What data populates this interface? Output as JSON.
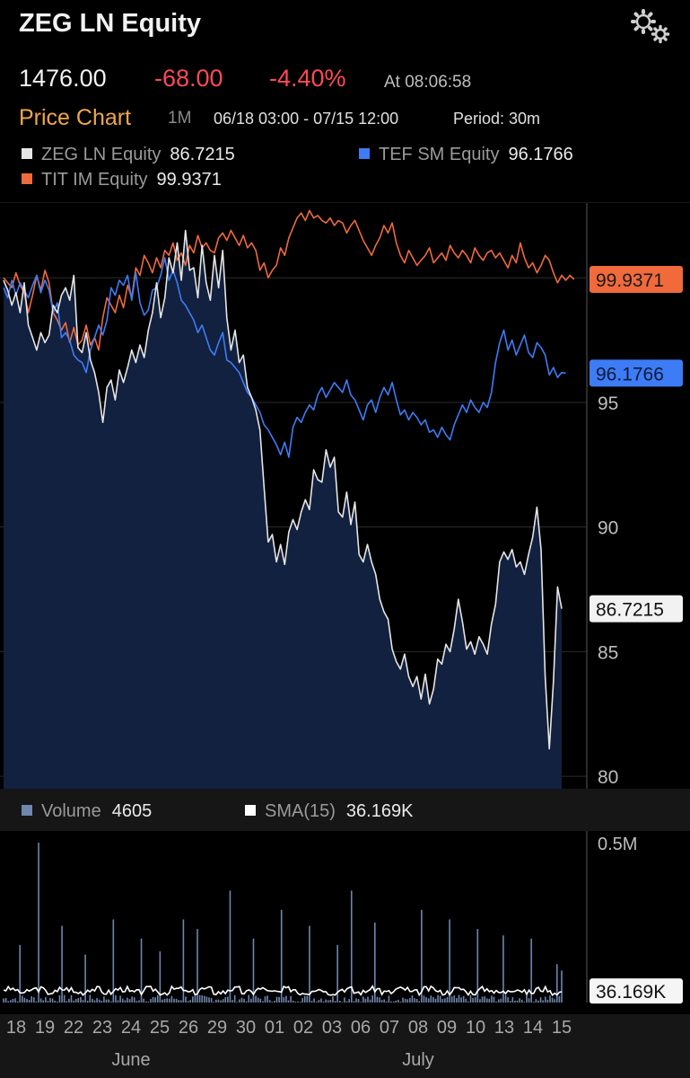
{
  "header": {
    "title": "ZEG LN Equity",
    "settings_icon": "gear-icon",
    "last_price": "1476.00",
    "change": "-68.00",
    "change_pct": "-4.40%",
    "time": "At 08:06:58"
  },
  "chart_header": {
    "title": "Price Chart",
    "range": "1M",
    "dates": "06/18 03:00 - 07/15 12:00",
    "period": "Period: 30m"
  },
  "legend": {
    "zeg": {
      "name": "ZEG LN Equity",
      "value": "86.7215"
    },
    "tef": {
      "name": "TEF SM Equity",
      "value": "96.1766"
    },
    "tit": {
      "name": "TIT IM Equity",
      "value": "99.9371"
    }
  },
  "volume_legend": {
    "volume": {
      "name": "Volume",
      "value": "4605"
    },
    "sma": {
      "name": "SMA(15)",
      "value": "36.169K"
    }
  },
  "colors": {
    "zeg": "#e6e6e6",
    "tef": "#3d7cf5",
    "tit": "#f06a3c",
    "area_fill": "#12213f",
    "volume": "#6f86ad",
    "gain": "#ff4a55",
    "accent": "#f0a64a"
  },
  "chart_data": {
    "type": "line",
    "y_axis_ticks": [
      "95",
      "90",
      "85",
      "80"
    ],
    "y_axis_tick_values": [
      95,
      90,
      85,
      80
    ],
    "ylim": [
      79.5,
      103
    ],
    "x_tick_labels": [
      "18",
      "19",
      "22",
      "23",
      "24",
      "25",
      "26",
      "29",
      "30",
      "01",
      "02",
      "03",
      "06",
      "07",
      "08",
      "09",
      "10",
      "13",
      "14",
      "15"
    ],
    "month_labels": [
      {
        "label": "June",
        "index": 4
      },
      {
        "label": "July",
        "index": 14
      }
    ],
    "last_value_labels": {
      "tit": "99.9371",
      "tef": "96.1766",
      "zeg": "86.7215"
    },
    "series": [
      {
        "name": "ZEG LN Equity",
        "key": "zeg",
        "area": true,
        "values": [
          99.9,
          99.5,
          98.9,
          99.4,
          98.6,
          99.8,
          98.1,
          97.6,
          97.1,
          97.8,
          97.4,
          97.7,
          98.9,
          98.6,
          99.3,
          99.6,
          99.1,
          100.1,
          97.2,
          97.0,
          97.8,
          96.7,
          96.2,
          95.4,
          94.2,
          95.6,
          95.9,
          95.1,
          96.3,
          95.8,
          96.4,
          97.1,
          96.6,
          97.3,
          96.8,
          97.9,
          98.6,
          99.8,
          98.4,
          99.2,
          100.8,
          100.2,
          101.4,
          99.9,
          101.9,
          100.3,
          100.4,
          99.2,
          101.3,
          99.8,
          99.1,
          100.9,
          99.6,
          101.1,
          98.4,
          97.1,
          97.9,
          96.6,
          96.9,
          95.6,
          95.2,
          94.7,
          93.9,
          91.6,
          89.4,
          89.7,
          88.6,
          89.3,
          88.5,
          89.8,
          90.3,
          89.9,
          90.6,
          91.1,
          90.7,
          92.3,
          91.9,
          91.8,
          93.1,
          92.4,
          92.8,
          90.6,
          90.4,
          91.4,
          90.1,
          91.0,
          88.9,
          88.6,
          89.3,
          88.6,
          88.1,
          87.1,
          86.6,
          86.3,
          85.1,
          84.6,
          84.3,
          84.9,
          84.0,
          83.6,
          84.0,
          83.1,
          84.1,
          82.9,
          83.5,
          84.7,
          84.5,
          85.3,
          85.0,
          85.9,
          87.1,
          86.2,
          85.1,
          85.4,
          84.9,
          85.6,
          85.3,
          84.9,
          86.1,
          86.9,
          88.6,
          89.0,
          88.7,
          89.1,
          88.4,
          88.6,
          88.1,
          88.9,
          89.6,
          90.8,
          89.1,
          84.0,
          81.1,
          83.8,
          87.6,
          86.7215
        ]
      },
      {
        "name": "TEF SM Equity",
        "key": "tef",
        "values": [
          99.6,
          99.2,
          99.9,
          99.3,
          99.8,
          99.5,
          99.2,
          99.7,
          100.1,
          99.4,
          99.9,
          99.5,
          98.6,
          99.0,
          97.6,
          97.8,
          97.5,
          96.9,
          96.7,
          96.6,
          96.2,
          97.1,
          97.6,
          98.1,
          97.7,
          98.3,
          99.6,
          99.3,
          99.9,
          99.7,
          100.1,
          99.1,
          100.2,
          99.0,
          98.5,
          98.7,
          99.5,
          99.6,
          100.1,
          100.8,
          99.9,
          100.3,
          99.8,
          99.1,
          98.9,
          98.6,
          98.3,
          97.8,
          98.1,
          97.6,
          97.1,
          96.9,
          97.4,
          97.8,
          96.7,
          96.6,
          96.4,
          96.2,
          95.8,
          95.4,
          95.2,
          94.9,
          94.6,
          94.1,
          93.9,
          93.6,
          93.3,
          92.9,
          93.4,
          92.8,
          94.0,
          94.4,
          94.2,
          94.6,
          94.9,
          94.7,
          95.3,
          95.6,
          95.2,
          95.5,
          95.8,
          95.6,
          95.4,
          95.9,
          95.3,
          95.1,
          94.7,
          94.3,
          94.9,
          95.1,
          94.6,
          95.2,
          95.6,
          95.3,
          95.8,
          95.1,
          94.5,
          94.7,
          94.3,
          94.6,
          94.4,
          94.1,
          94.3,
          93.8,
          93.9,
          93.6,
          94.0,
          93.7,
          93.5,
          94.1,
          94.5,
          94.9,
          94.6,
          95.1,
          94.8,
          94.6,
          95.0,
          94.8,
          95.4,
          96.6,
          97.4,
          97.9,
          97.1,
          97.5,
          96.9,
          97.3,
          97.7,
          97.0,
          96.8,
          97.4,
          97.2,
          96.9,
          96.1,
          96.4,
          96.0,
          96.2,
          96.1766
        ]
      },
      {
        "name": "TIT IM Equity",
        "key": "tit",
        "values": [
          100.0,
          99.8,
          99.6,
          100.2,
          99.7,
          99.4,
          98.6,
          99.3,
          100.1,
          99.5,
          100.3,
          99.8,
          98.6,
          98.3,
          97.9,
          98.2,
          97.4,
          98.0,
          97.3,
          97.5,
          98.1,
          97.3,
          97.6,
          97.1,
          98.4,
          99.2,
          98.9,
          98.6,
          99.3,
          98.8,
          99.7,
          99.2,
          100.4,
          100.1,
          100.9,
          100.6,
          100.2,
          100.8,
          100.4,
          101.1,
          100.9,
          101.4,
          100.7,
          101.0,
          100.5,
          101.3,
          101.0,
          101.7,
          101.2,
          101.4,
          101.1,
          101.0,
          101.6,
          101.8,
          101.5,
          101.9,
          101.6,
          101.3,
          101.7,
          101.2,
          101.4,
          101.1,
          100.3,
          100.6,
          100.0,
          100.3,
          100.5,
          101.2,
          100.9,
          101.6,
          102.0,
          102.4,
          102.6,
          102.3,
          102.7,
          102.4,
          102.5,
          102.3,
          102.2,
          102.4,
          102.1,
          102.3,
          102.2,
          101.8,
          102.1,
          102.3,
          101.9,
          101.5,
          101.2,
          100.9,
          101.3,
          101.6,
          102.1,
          101.8,
          102.2,
          101.4,
          100.9,
          100.6,
          101.1,
          100.8,
          100.5,
          100.7,
          100.9,
          101.2,
          100.6,
          100.8,
          101.0,
          100.7,
          101.3,
          101.0,
          100.8,
          101.1,
          100.9,
          100.6,
          101.2,
          100.9,
          100.7,
          101.0,
          101.1,
          100.8,
          101.0,
          100.7,
          100.4,
          100.9,
          100.6,
          101.4,
          100.8,
          100.4,
          100.6,
          100.2,
          100.5,
          100.9,
          100.7,
          100.2,
          99.8,
          100.1,
          99.9,
          100.1,
          99.9371
        ]
      }
    ],
    "volume": {
      "name": "Volume",
      "last": 4605,
      "ylim": [
        0,
        500000
      ],
      "y_axis_ticks": [
        "0.5M"
      ],
      "y_axis_tick_values": [
        500000
      ],
      "spikes": [
        {
          "i": 7,
          "v": 180000
        },
        {
          "i": 15,
          "v": 500000
        },
        {
          "i": 25,
          "v": 240000
        },
        {
          "i": 35,
          "v": 150000
        },
        {
          "i": 47,
          "v": 260000
        },
        {
          "i": 59,
          "v": 200000
        },
        {
          "i": 67,
          "v": 160000
        },
        {
          "i": 77,
          "v": 260000
        },
        {
          "i": 83,
          "v": 230000
        },
        {
          "i": 97,
          "v": 350000
        },
        {
          "i": 107,
          "v": 200000
        },
        {
          "i": 119,
          "v": 290000
        },
        {
          "i": 131,
          "v": 240000
        },
        {
          "i": 143,
          "v": 180000
        },
        {
          "i": 149,
          "v": 350000
        },
        {
          "i": 159,
          "v": 250000
        },
        {
          "i": 179,
          "v": 290000
        },
        {
          "i": 191,
          "v": 260000
        },
        {
          "i": 203,
          "v": 230000
        },
        {
          "i": 214,
          "v": 210000
        },
        {
          "i": 226,
          "v": 200000
        },
        {
          "i": 237,
          "v": 120000
        },
        {
          "i": 239,
          "v": 100000
        }
      ],
      "sma": {
        "name": "SMA(15)",
        "last_label": "36.169K",
        "typical": 36000
      }
    }
  }
}
